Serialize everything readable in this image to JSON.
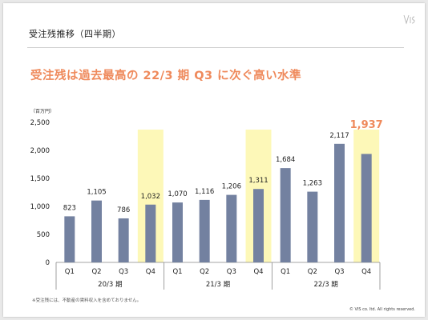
{
  "slide": {
    "title": "受注残推移（四半期）",
    "headline": "受注残は過去最高の 22/3 期 Q3 に次ぐ高い水準",
    "unit_label": "（百万円）",
    "footnote": "※受注残には、不動産の賃料収入を含めておりません。",
    "copyright": "© VIS co. ltd. All rights reserved."
  },
  "colors": {
    "bar": "#7381a0",
    "highlight": "#fdf8b8",
    "highlight_value": "#ef8a5c",
    "headline": "#ef8a5c",
    "axis_text": "#222222",
    "grid": "#dddddd"
  },
  "icons": {
    "logo": "vis-logo-icon"
  },
  "chart_data": {
    "type": "bar",
    "title": "",
    "xlabel": "",
    "ylabel": "（百万円）",
    "ylim": [
      0,
      2500
    ],
    "yticks": [
      0,
      500,
      1000,
      1500,
      2000,
      2500
    ],
    "yticks_labels": [
      "0",
      "500",
      "1,000",
      "1,500",
      "2,000",
      "2,500"
    ],
    "grid": false,
    "groups": [
      {
        "label": "20/3 期",
        "quarters": [
          "Q1",
          "Q2",
          "Q3",
          "Q4"
        ],
        "values": [
          823,
          1105,
          786,
          1032
        ],
        "value_labels": [
          "823",
          "1,105",
          "786",
          "1,032"
        ]
      },
      {
        "label": "21/3 期",
        "quarters": [
          "Q1",
          "Q2",
          "Q3",
          "Q4"
        ],
        "values": [
          1070,
          1116,
          1206,
          1311
        ],
        "value_labels": [
          "1,070",
          "1,116",
          "1,206",
          "1,311"
        ]
      },
      {
        "label": "22/3 期",
        "quarters": [
          "Q1",
          "Q2",
          "Q3",
          "Q4"
        ],
        "values": [
          1684,
          1263,
          2117,
          1937
        ],
        "value_labels": [
          "1,684",
          "1,263",
          "2,117",
          "1,937"
        ]
      }
    ],
    "highlighted_quarter": "Q4",
    "emphasized_value": {
      "group": 2,
      "quarter": 3
    }
  }
}
